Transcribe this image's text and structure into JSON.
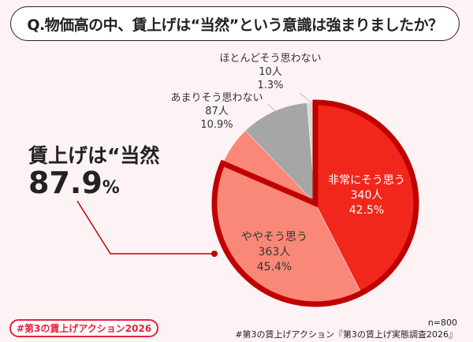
{
  "title": "Q.物価高の中、賃上げは“当然”という意識は強まりましたか？",
  "callout": {
    "label": "賃上げは“当然",
    "value": "87.9",
    "unit": "%"
  },
  "chart_data": {
    "type": "pie",
    "start": "12 o'clock, clockwise",
    "slices": [
      {
        "name": "非常にそう思う",
        "count": "340人",
        "percent": "42.5%",
        "value": 42.5,
        "color": "#f2271c"
      },
      {
        "name": "ややそう思う",
        "count": "363人",
        "percent": "45.4%",
        "value": 45.4,
        "color": "#fa8878"
      },
      {
        "name": "あまりそう思わない",
        "count": "87人",
        "percent": "10.9%",
        "value": 10.9,
        "color": "#a6a6a6"
      },
      {
        "name": "ほとんどそう思わない",
        "count": "10人",
        "percent": "1.3%",
        "value": 1.3,
        "color": "#d9d9d9"
      }
    ],
    "highlight_color": "#c00000"
  },
  "footer": {
    "tag": "#第3の賃上げアクション2026",
    "n": "n=800",
    "source": "#第3の賃上げアクション『第3の賃上げ実態調査2026』"
  }
}
